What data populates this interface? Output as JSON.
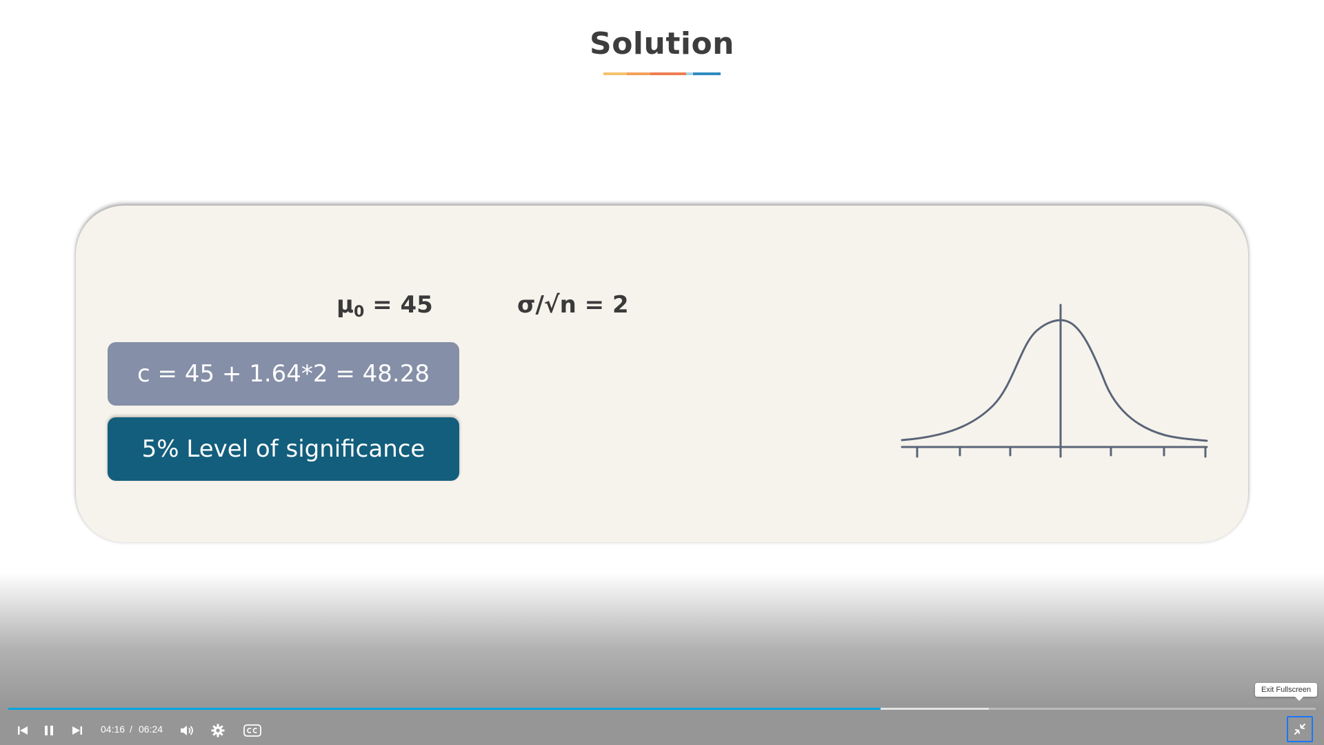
{
  "slide": {
    "title": "Solution",
    "underline_colors": [
      "#f5c26b",
      "#f3a15c",
      "#ee7d52",
      "#a6d4e6",
      "#2f8cc0"
    ],
    "mu_symbol": "μ",
    "mu_subscript": "0",
    "mu_value": " = 45",
    "sigma_line": "σ/√n = 2",
    "critical_value": "c = 45 + 1.64*2 =  48.28",
    "significance": "5% Level of significance",
    "colors": {
      "card_bg": "#f6f3ec",
      "pill_critical": "#858fa7",
      "pill_significance": "#135e7c",
      "curve": "#5a6478"
    }
  },
  "player": {
    "current_time": "04:16",
    "separator": "/",
    "duration": "06:24",
    "played_fraction": 0.667,
    "buffered_fraction": 0.75,
    "tooltip": "Exit Fullscreen",
    "icons": {
      "previous": "skip-previous-icon",
      "pause": "pause-icon",
      "next": "skip-next-icon",
      "volume": "volume-icon",
      "settings": "gear-icon",
      "captions": "closed-captions-icon",
      "exit_fullscreen": "exit-fullscreen-icon"
    },
    "accent_color": "#00a7e1"
  }
}
